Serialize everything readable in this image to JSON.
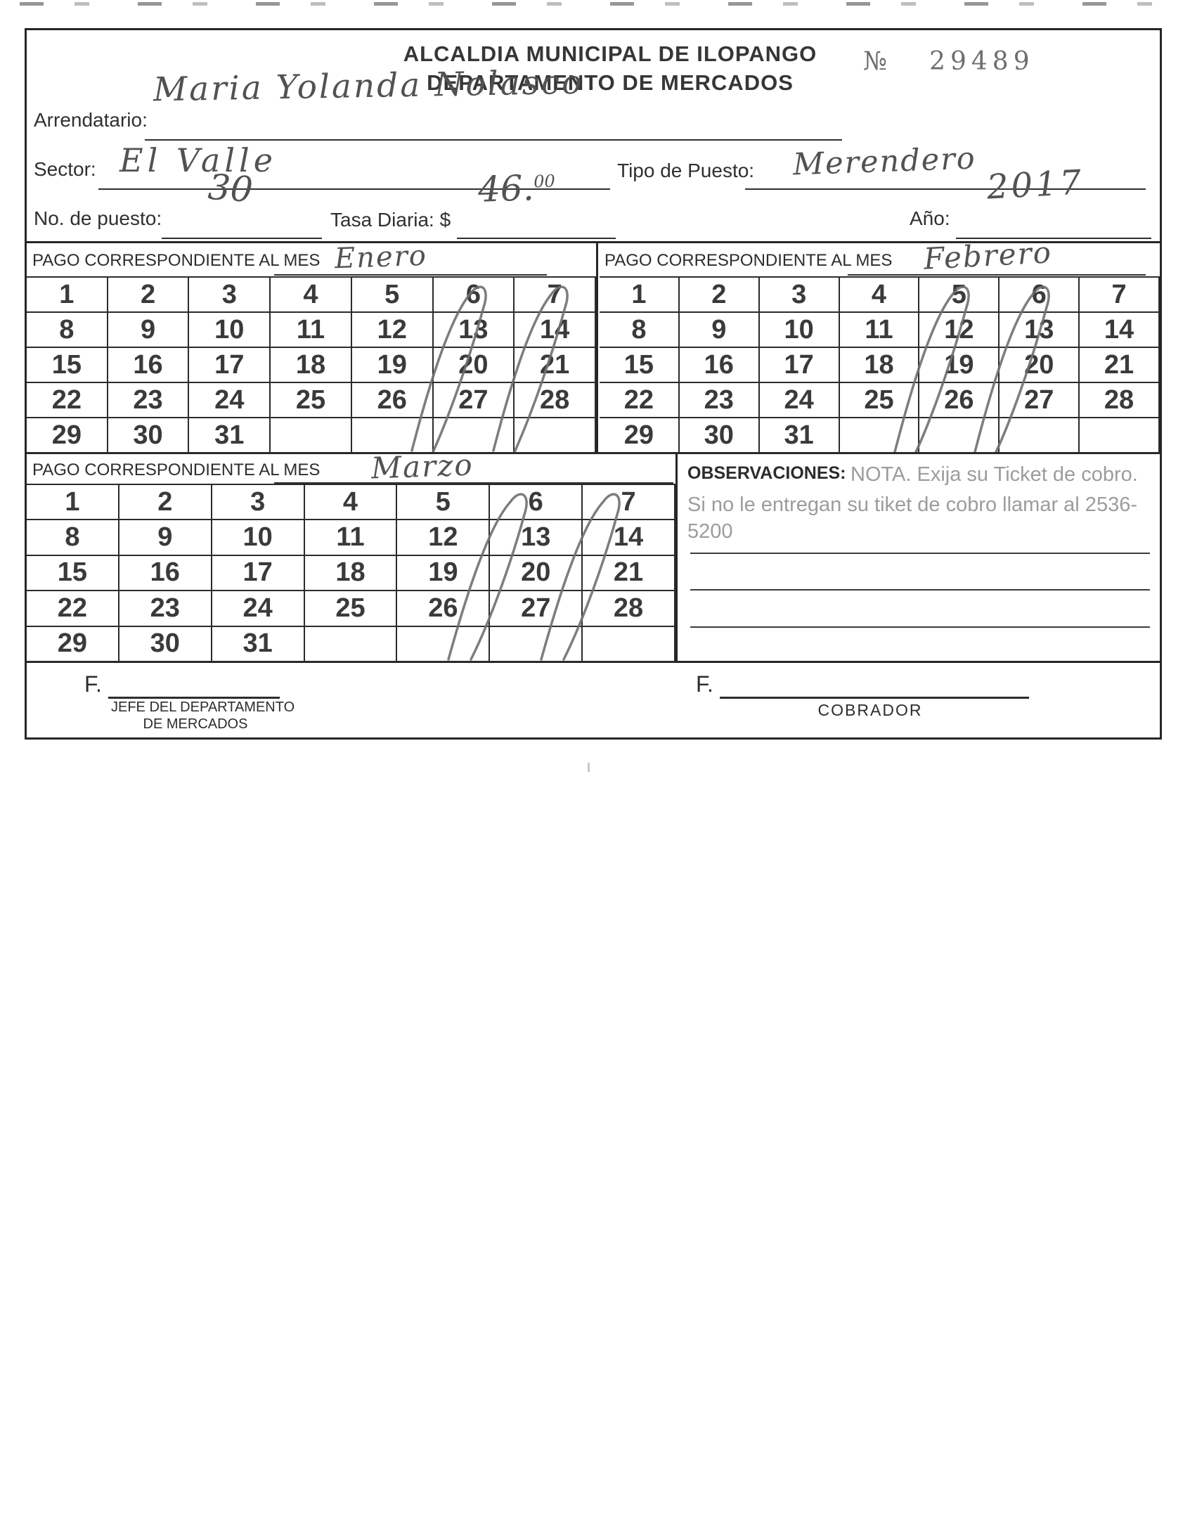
{
  "header": {
    "title_line1": "ALCALDIA MUNICIPAL DE ILOPANGO",
    "title_line2": "DEPARTAMENTO DE MERCADOS",
    "number_sign": "№",
    "number_value": "29489"
  },
  "fields": {
    "arrendatario_label": "Arrendatario:",
    "arrendatario_value": "Maria Yolanda Nolasco",
    "sector_label": "Sector:",
    "sector_value": "El Valle",
    "tipo_puesto_label": "Tipo de Puesto:",
    "tipo_puesto_value": "Merendero",
    "no_puesto_label": "No. de puesto:",
    "no_puesto_value": "30",
    "tasa_label": "Tasa Diaria: $",
    "tasa_value": "46.",
    "tasa_superscript": "00",
    "anio_label": "Año:",
    "anio_value": "2017"
  },
  "months": [
    {
      "label": "PAGO CORRESPONDIENTE AL MES",
      "value": "Enero",
      "marked_days": [
        12,
        13,
        19,
        20,
        26,
        27
      ]
    },
    {
      "label": "PAGO CORRESPONDIENTE AL MES",
      "value": "Febrero",
      "marked_days": [
        11,
        12,
        18,
        19,
        25,
        26
      ]
    },
    {
      "label": "PAGO CORRESPONDIENTE AL MES",
      "value": "Marzo",
      "marked_days": [
        12,
        13,
        19,
        20,
        26
      ]
    }
  ],
  "calendar": {
    "rows": 5,
    "cols": 7,
    "days": [
      1,
      2,
      3,
      4,
      5,
      6,
      7,
      8,
      9,
      10,
      11,
      12,
      13,
      14,
      15,
      16,
      17,
      18,
      19,
      20,
      21,
      22,
      23,
      24,
      25,
      26,
      27,
      28,
      29,
      30,
      31
    ]
  },
  "observaciones": {
    "label": "OBSERVACIONES:",
    "nota": "NOTA. Exija su Ticket  de cobro.",
    "detail": "Si no le entregan su tiket de cobro llamar al 2536-5200"
  },
  "signatures": {
    "left_prefix": "F.",
    "left_title_line1": "JEFE DEL DEPARTAMENTO",
    "left_title_line2": "DE MERCADOS",
    "right_prefix": "F.",
    "right_title": "COBRADOR"
  }
}
